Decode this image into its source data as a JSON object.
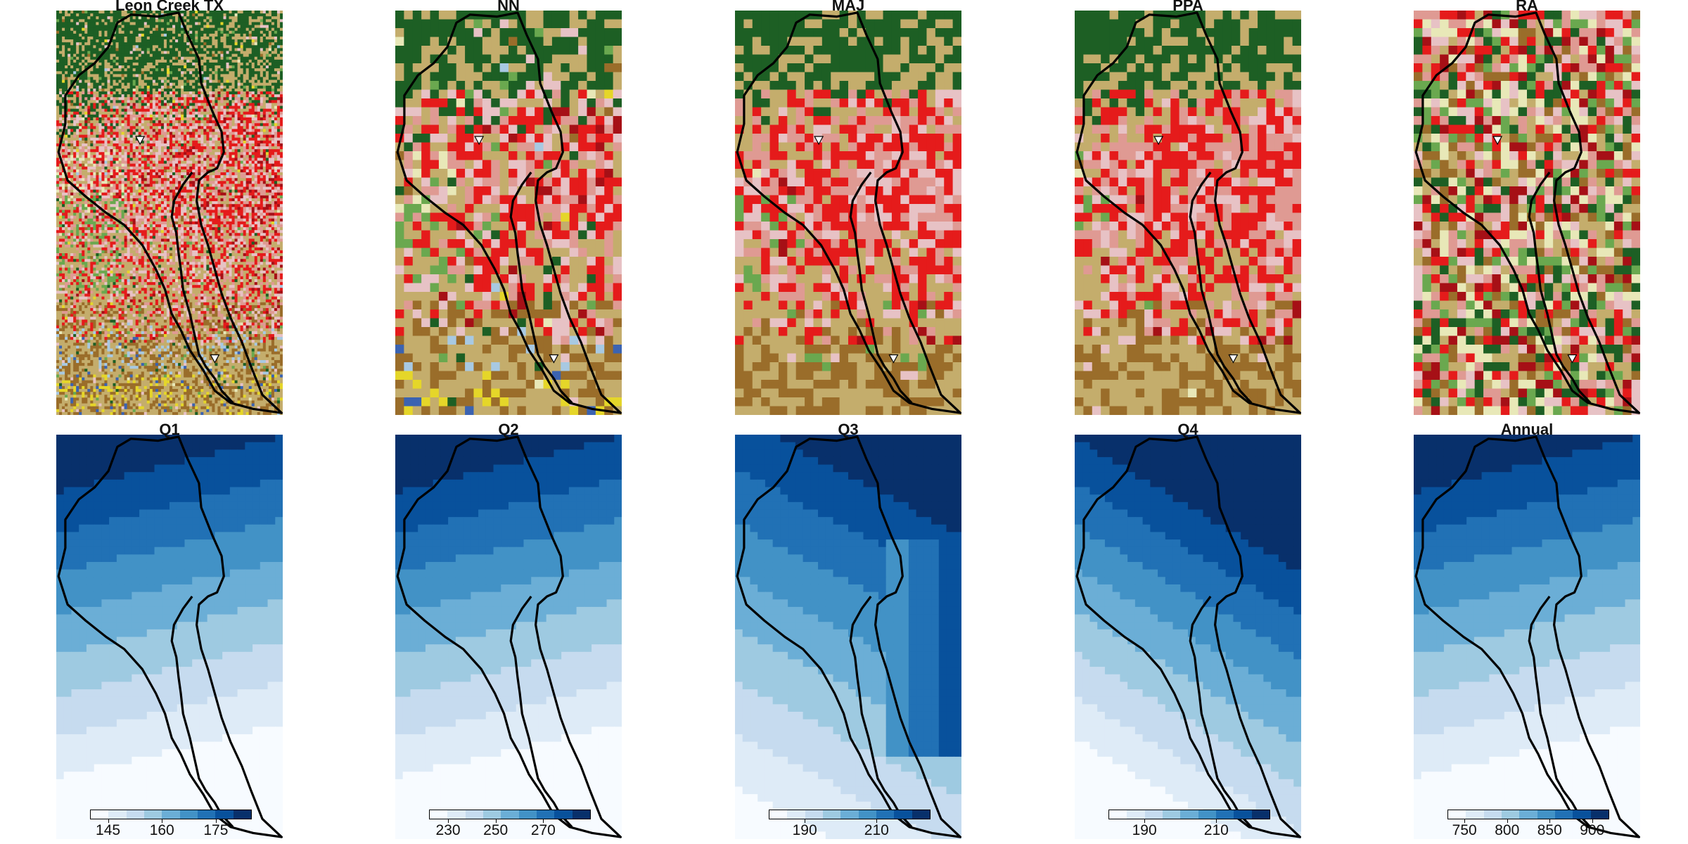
{
  "landcover_colors": [
    "#1d5f24",
    "#c4ad6c",
    "#e51b1b",
    "#df9a93",
    "#e7c2c5",
    "#a61016",
    "#6aa84f",
    "#9a6d2a",
    "#e8e8b8",
    "#a8c9e2",
    "#e5d629",
    "#3b63b1"
  ],
  "blue_colors": [
    "#f7fbff",
    "#deebf7",
    "#c6dbef",
    "#9ecae1",
    "#6baed6",
    "#4292c6",
    "#2171b5",
    "#08519c",
    "#08306b"
  ],
  "outline_color": "#000000",
  "chart_data": [
    {
      "type": "map",
      "title": "Leon Creek TX",
      "kind": "landcover",
      "texture": "fine",
      "markers": 2
    },
    {
      "type": "map",
      "title": "NN",
      "kind": "landcover",
      "texture": "nn",
      "markers": 2
    },
    {
      "type": "map",
      "title": "MAJ",
      "kind": "landcover",
      "texture": "maj",
      "markers": 2
    },
    {
      "type": "map",
      "title": "PPA",
      "kind": "landcover",
      "texture": "ppa",
      "markers": 2
    },
    {
      "type": "map",
      "title": "RA",
      "kind": "landcover",
      "texture": "random",
      "markers": 2
    },
    {
      "type": "heatmap",
      "title": "Q1",
      "kind": "precip",
      "pattern": "north-high",
      "legend": {
        "ticks": [
          145,
          160,
          175
        ],
        "range": [
          140,
          185
        ]
      }
    },
    {
      "type": "heatmap",
      "title": "Q2",
      "kind": "precip",
      "pattern": "north-high",
      "legend": {
        "ticks": [
          230,
          250,
          270
        ],
        "range": [
          222,
          290
        ]
      }
    },
    {
      "type": "heatmap",
      "title": "Q3",
      "kind": "precip",
      "pattern": "diagonal",
      "legend": {
        "ticks": [
          190,
          210
        ],
        "range": [
          180,
          225
        ]
      }
    },
    {
      "type": "heatmap",
      "title": "Q4",
      "kind": "precip",
      "pattern": "northeast-high",
      "legend": {
        "ticks": [
          190,
          210
        ],
        "range": [
          180,
          225
        ]
      }
    },
    {
      "type": "heatmap",
      "title": "Annual",
      "kind": "precip",
      "pattern": "north-high",
      "legend": {
        "ticks": [
          750,
          800,
          850,
          900
        ],
        "range": [
          730,
          920
        ]
      }
    }
  ]
}
